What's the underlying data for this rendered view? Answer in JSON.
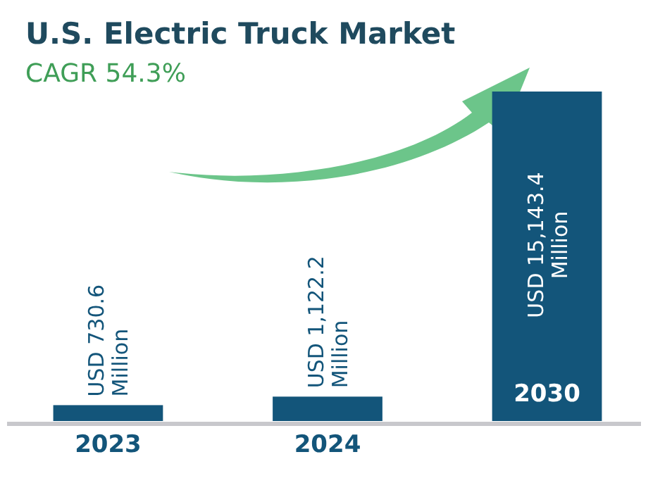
{
  "chart_data": {
    "type": "bar",
    "title": "U.S. Electric Truck Market",
    "subtitle": "CAGR 54.3%",
    "categories": [
      "2023",
      "2024",
      "2030"
    ],
    "values": [
      730.6,
      1122.2,
      15143.4
    ],
    "color": "#13557a",
    "value_labels": [
      "USD 730.6 Million",
      "USD 1,122.2 Million",
      "USD 15,143.4 Million"
    ]
  }
}
